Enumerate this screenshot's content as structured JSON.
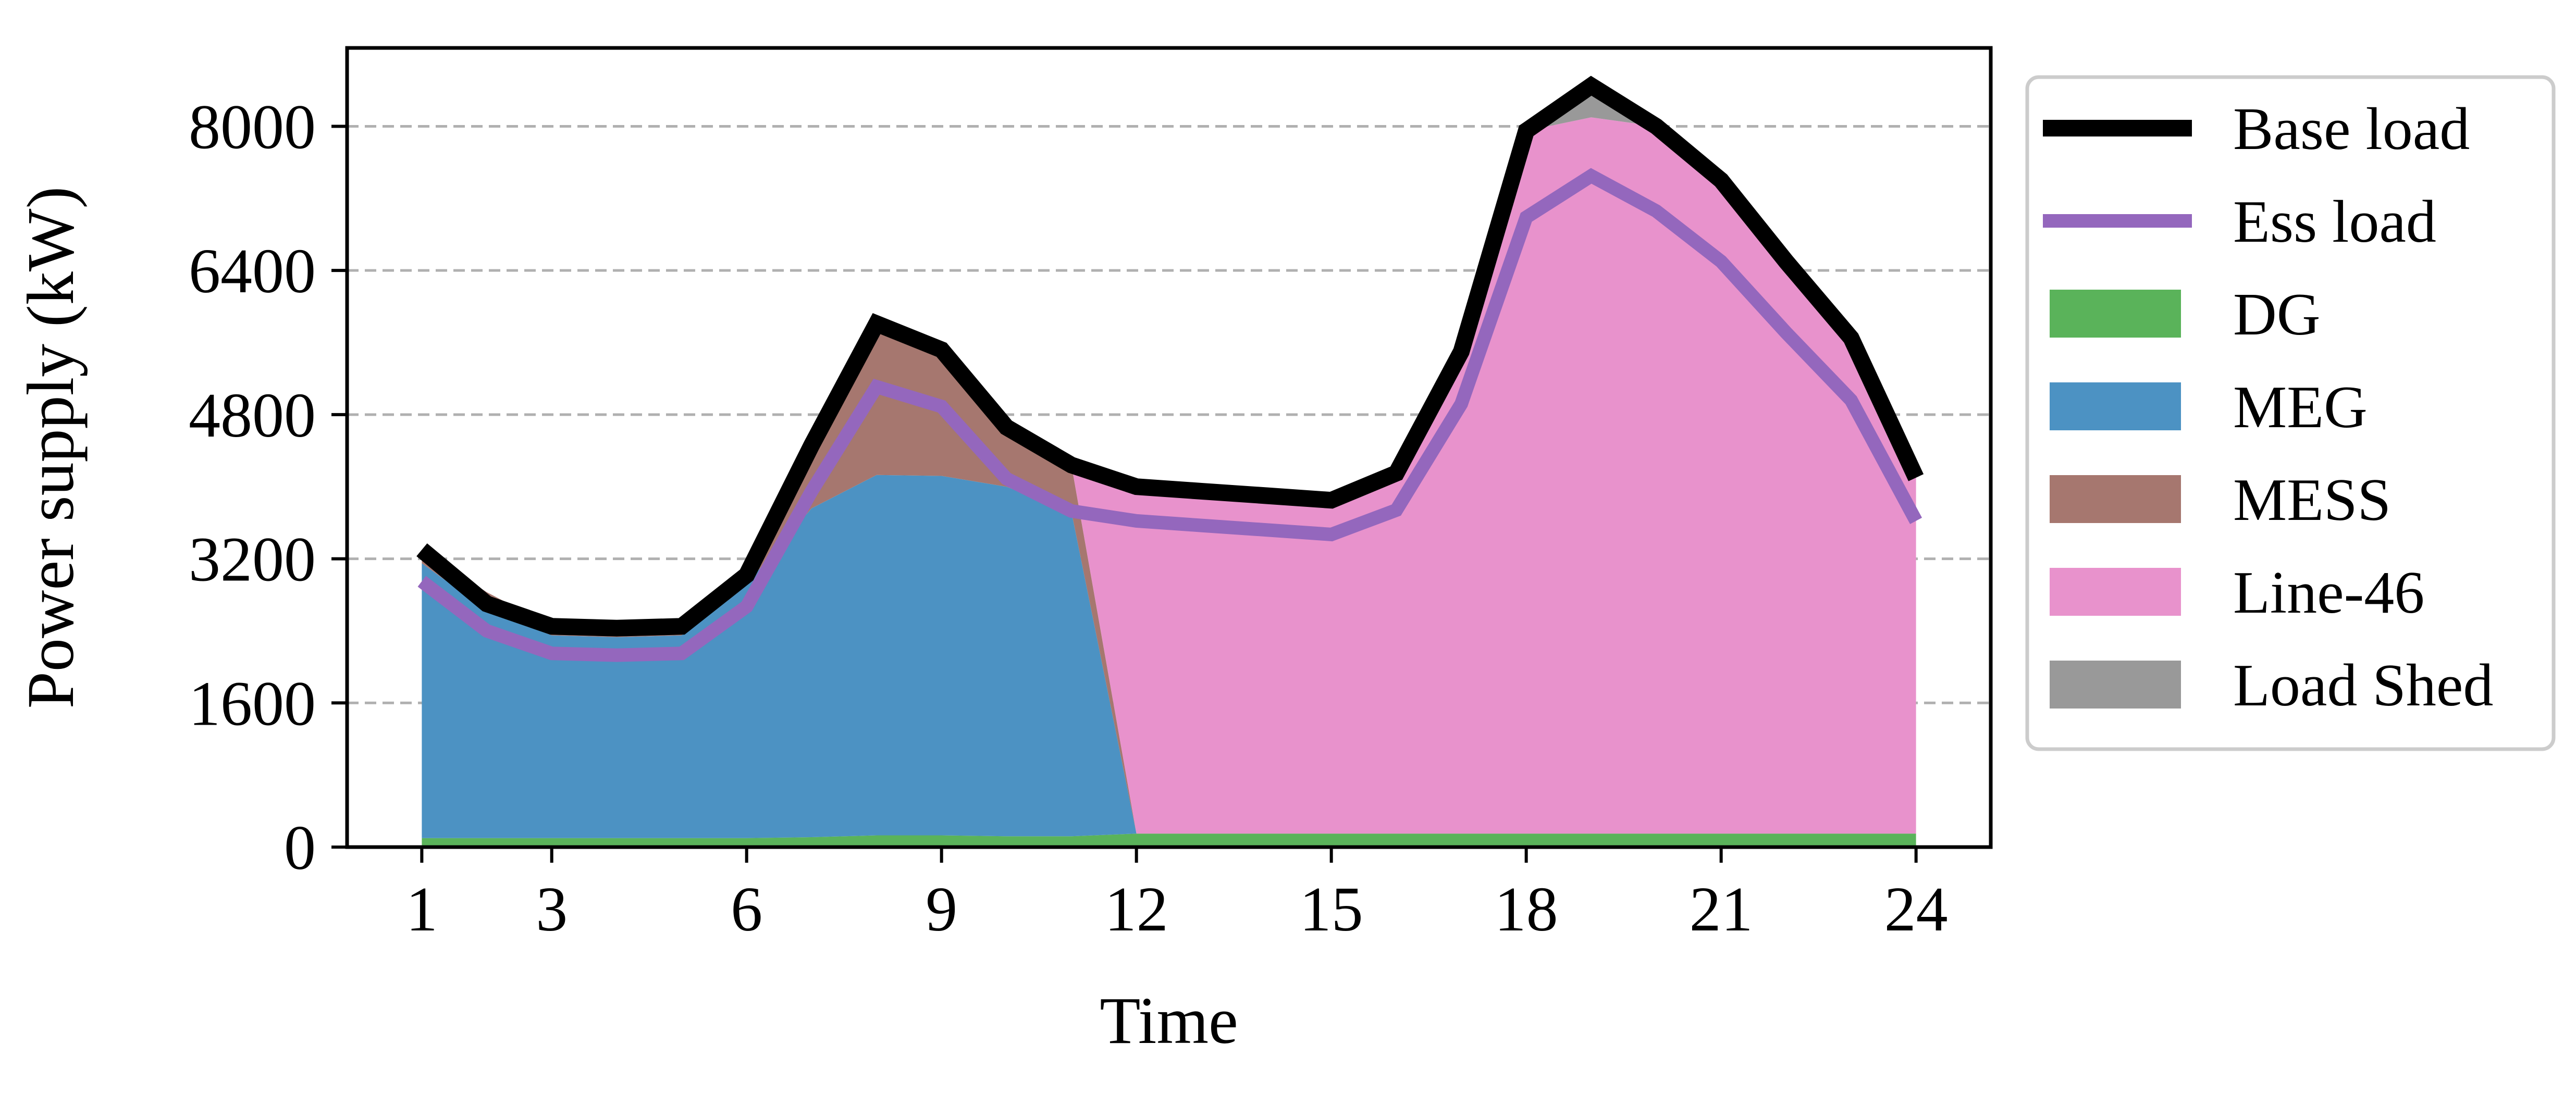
{
  "chart_data": {
    "type": "area",
    "title": "",
    "xlabel": "Time",
    "ylabel": "Power supply (kW)",
    "x": [
      1,
      2,
      3,
      4,
      5,
      6,
      7,
      8,
      9,
      10,
      11,
      12,
      13,
      14,
      15,
      16,
      17,
      18,
      19,
      20,
      21,
      22,
      23,
      24
    ],
    "xticks": [
      1,
      3,
      6,
      9,
      12,
      15,
      18,
      21,
      24
    ],
    "xlim": [
      -0.15,
      25.15
    ],
    "yticks": [
      0,
      1600,
      3200,
      4800,
      6400,
      8000
    ],
    "ylim": [
      0,
      8870
    ],
    "grid": "y-dashed",
    "legend_position": "outside-right",
    "stack_order": [
      "DG",
      "MEG",
      "MESS",
      "Line-46",
      "Load Shed"
    ],
    "series": [
      {
        "name": "DG",
        "kind": "stacked-area",
        "color": "#5ab35a",
        "values": [
          100,
          100,
          100,
          100,
          100,
          100,
          110,
          130,
          130,
          120,
          120,
          150,
          150,
          150,
          150,
          150,
          150,
          150,
          150,
          150,
          150,
          150,
          150,
          150
        ]
      },
      {
        "name": "MEG",
        "kind": "stacked-area",
        "color": "#4c92c3",
        "values": [
          3050,
          2530,
          2250,
          2230,
          2250,
          2820,
          3650,
          4000,
          3990,
          3880,
          3600,
          0,
          0,
          0,
          0,
          0,
          0,
          0,
          0,
          0,
          0,
          0,
          0,
          0
        ]
      },
      {
        "name": "MESS",
        "kind": "stacked-area",
        "color": "#a6776f",
        "values": [
          150,
          200,
          100,
          100,
          100,
          100,
          700,
          1680,
          1400,
          720,
          520,
          0,
          0,
          0,
          0,
          0,
          0,
          0,
          0,
          0,
          0,
          0,
          0,
          0
        ]
      },
      {
        "name": "Line-46",
        "kind": "stacked-area",
        "color": "#e892cc",
        "values": [
          0,
          0,
          0,
          0,
          0,
          0,
          0,
          0,
          0,
          0,
          0,
          3850,
          3800,
          3750,
          3700,
          4000,
          5400,
          7800,
          7950,
          7850,
          7250,
          6450,
          5550,
          3950
        ]
      },
      {
        "name": "Load Shed",
        "kind": "stacked-area",
        "color": "#999999",
        "values": [
          0,
          0,
          0,
          0,
          0,
          0,
          0,
          0,
          0,
          0,
          0,
          0,
          0,
          0,
          0,
          0,
          0,
          0,
          350,
          0,
          0,
          0,
          0,
          0
        ]
      },
      {
        "name": "Base load",
        "kind": "line",
        "color": "#000000",
        "values": [
          3300,
          2700,
          2450,
          2430,
          2450,
          3020,
          4460,
          5810,
          5520,
          4660,
          4240,
          4000,
          3950,
          3900,
          3850,
          4150,
          5500,
          7950,
          8450,
          8000,
          7400,
          6500,
          5650,
          4100
        ]
      },
      {
        "name": "Ess load",
        "kind": "line",
        "color": "#9467bd",
        "values": [
          2950,
          2400,
          2150,
          2130,
          2150,
          2670,
          3950,
          5110,
          4890,
          4090,
          3730,
          3620,
          3570,
          3520,
          3470,
          3740,
          4920,
          6990,
          7450,
          7060,
          6500,
          5710,
          4960,
          3620
        ]
      }
    ]
  }
}
